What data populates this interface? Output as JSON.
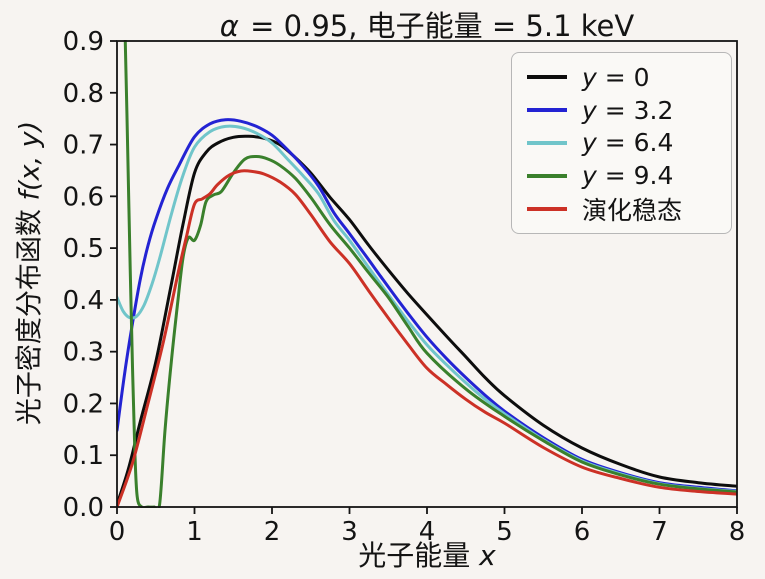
{
  "figure": {
    "title_math": "α",
    "title_rest": " = 0.95, 电子能量 = 5.1 keV",
    "xlabel": {
      "text": "光子能量 ",
      "math": "x"
    },
    "ylabel": {
      "text": "光子密度分布函数 ",
      "math": "f(x, y)"
    }
  },
  "axes": {
    "xlim": [
      0,
      8
    ],
    "ylim": [
      0,
      0.9
    ],
    "xticks": [
      "0",
      "1",
      "2",
      "3",
      "4",
      "5",
      "6",
      "7",
      "8"
    ],
    "yticks": [
      "0.0",
      "0.1",
      "0.2",
      "0.3",
      "0.4",
      "0.5",
      "0.6",
      "0.7",
      "0.8",
      "0.9"
    ],
    "spine_color": "#141414"
  },
  "legend": {
    "entries": [
      {
        "math": "y",
        "rest": " = 0",
        "color": "#0d0d0d"
      },
      {
        "math": "y",
        "rest": " = 3.2",
        "color": "#2323d3"
      },
      {
        "math": "y",
        "rest": " = 6.4",
        "color": "#70c5ca"
      },
      {
        "math": "y",
        "rest": " = 9.4",
        "color": "#3a802c"
      },
      {
        "math": "",
        "rest": "演化稳态",
        "color": "#cc3126"
      }
    ]
  },
  "chart_data": {
    "type": "line",
    "title": "α = 0.95, 电子能量 = 5.1 keV",
    "xlabel": "光子能量 x",
    "ylabel": "光子密度分布函数 f(x, y)",
    "xlim": [
      0,
      8
    ],
    "ylim": [
      0,
      0.9
    ],
    "grid": false,
    "legend_position": "upper right",
    "series": [
      {
        "id": "y0",
        "name": "y = 0",
        "color": "#0d0d0d",
        "x": [
          0,
          0.15,
          0.3,
          0.5,
          0.7,
          0.85,
          1.0,
          1.15,
          1.3,
          1.5,
          1.7,
          1.9,
          2.1,
          2.3,
          2.5,
          2.75,
          3.0,
          3.25,
          3.5,
          3.75,
          4.0,
          4.25,
          4.5,
          4.75,
          5.0,
          5.5,
          6.0,
          6.5,
          7.0,
          7.5,
          8.0
        ],
        "y": [
          0.005,
          0.075,
          0.165,
          0.28,
          0.43,
          0.545,
          0.645,
          0.685,
          0.703,
          0.714,
          0.716,
          0.712,
          0.7,
          0.675,
          0.645,
          0.598,
          0.555,
          0.505,
          0.458,
          0.413,
          0.371,
          0.33,
          0.29,
          0.25,
          0.215,
          0.158,
          0.114,
          0.082,
          0.058,
          0.047,
          0.04
        ]
      },
      {
        "id": "y32",
        "name": "y = 3.2",
        "color": "#2323d3",
        "x": [
          0,
          0.1,
          0.2,
          0.3,
          0.4,
          0.5,
          0.65,
          0.8,
          1.0,
          1.2,
          1.4,
          1.6,
          1.8,
          2.0,
          2.2,
          2.4,
          2.6,
          2.8,
          3.0,
          3.25,
          3.5,
          3.75,
          4.0,
          4.25,
          4.5,
          4.75,
          5.0,
          5.5,
          6.0,
          6.5,
          7.0,
          7.5,
          8.0
        ],
        "y": [
          0.148,
          0.26,
          0.355,
          0.44,
          0.505,
          0.555,
          0.615,
          0.66,
          0.715,
          0.74,
          0.748,
          0.745,
          0.735,
          0.718,
          0.69,
          0.658,
          0.62,
          0.568,
          0.528,
          0.477,
          0.425,
          0.375,
          0.328,
          0.287,
          0.25,
          0.216,
          0.185,
          0.134,
          0.092,
          0.066,
          0.047,
          0.038,
          0.031
        ]
      },
      {
        "id": "y64",
        "name": "y = 6.4",
        "color": "#70c5ca",
        "x": [
          0,
          0.08,
          0.16,
          0.25,
          0.35,
          0.45,
          0.55,
          0.7,
          0.85,
          1.0,
          1.2,
          1.4,
          1.6,
          1.8,
          2.0,
          2.2,
          2.4,
          2.6,
          2.8,
          3.0,
          3.25,
          3.5,
          3.75,
          4.0,
          4.25,
          4.5,
          4.75,
          5.0,
          5.5,
          6.0,
          6.5,
          7.0,
          7.5,
          8.0
        ],
        "y": [
          0.405,
          0.378,
          0.366,
          0.368,
          0.39,
          0.43,
          0.48,
          0.565,
          0.64,
          0.695,
          0.725,
          0.735,
          0.733,
          0.722,
          0.703,
          0.672,
          0.64,
          0.605,
          0.553,
          0.515,
          0.462,
          0.41,
          0.36,
          0.313,
          0.275,
          0.24,
          0.208,
          0.18,
          0.13,
          0.089,
          0.064,
          0.045,
          0.036,
          0.03
        ]
      },
      {
        "id": "y94",
        "name": "y = 9.4",
        "color": "#3a802c",
        "x": [
          0.03,
          0.07,
          0.11,
          0.14,
          0.17,
          0.2,
          0.23,
          0.26,
          0.32,
          0.4,
          0.48,
          0.55,
          0.62,
          0.7,
          0.78,
          0.85,
          0.92,
          1.0,
          1.08,
          1.15,
          1.25,
          1.35,
          1.5,
          1.65,
          1.8,
          1.95,
          2.1,
          2.3,
          2.5,
          2.75,
          3.0,
          3.25,
          3.5,
          3.75,
          4.0,
          4.5,
          5.0,
          5.5,
          6.0,
          6.5,
          7.0,
          7.5,
          8.0
        ],
        "y": [
          1.4,
          1.15,
          0.88,
          0.68,
          0.46,
          0.27,
          0.11,
          0.02,
          0.0,
          0.0,
          0.0,
          0.005,
          0.15,
          0.28,
          0.39,
          0.48,
          0.52,
          0.515,
          0.545,
          0.59,
          0.603,
          0.61,
          0.645,
          0.672,
          0.677,
          0.672,
          0.66,
          0.635,
          0.598,
          0.545,
          0.5,
          0.452,
          0.405,
          0.35,
          0.297,
          0.228,
          0.175,
          0.128,
          0.087,
          0.062,
          0.044,
          0.035,
          0.029
        ]
      },
      {
        "id": "steady",
        "name": "演化稳态",
        "color": "#cc3126",
        "x": [
          0,
          0.2,
          0.4,
          0.6,
          0.8,
          0.9,
          1.0,
          1.1,
          1.2,
          1.3,
          1.45,
          1.6,
          1.75,
          1.9,
          2.1,
          2.3,
          2.5,
          2.75,
          3.0,
          3.25,
          3.5,
          3.75,
          4.0,
          4.25,
          4.5,
          4.75,
          5.0,
          5.5,
          6.0,
          6.5,
          7.0,
          7.5,
          8.0
        ],
        "y": [
          0.0,
          0.085,
          0.2,
          0.32,
          0.46,
          0.525,
          0.585,
          0.595,
          0.605,
          0.623,
          0.641,
          0.649,
          0.648,
          0.643,
          0.628,
          0.604,
          0.565,
          0.512,
          0.47,
          0.417,
          0.365,
          0.315,
          0.268,
          0.237,
          0.208,
          0.183,
          0.162,
          0.115,
          0.077,
          0.055,
          0.038,
          0.03,
          0.025
        ]
      }
    ]
  }
}
